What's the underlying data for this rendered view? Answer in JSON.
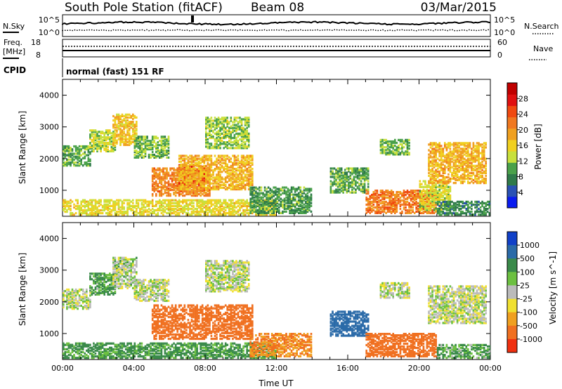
{
  "header": {
    "station": "South Pole Station (fitACF)",
    "beam": "Beam 08",
    "date": "03/Mar/2015"
  },
  "top_panels": {
    "nsky_label": "N.Sky",
    "nsearch_label": "N.Search",
    "freq_label": "Freq.",
    "freq_unit": "[MHz]",
    "nave_label": "Nave",
    "cpid_label": "CPID",
    "noise_ticks_left": [
      "10^5",
      "10^0"
    ],
    "noise_ticks_right": [
      "10^5",
      "10^0"
    ],
    "freq_ticks": [
      "18",
      "8"
    ],
    "nave_ticks": [
      "60",
      "0"
    ],
    "cpid_text": "normal (fast) 151 RF"
  },
  "chart_data": [
    {
      "type": "heatmap",
      "panel": "power",
      "ylabel": "Slant Range [km]",
      "xlabel": "",
      "xlim_hours": [
        0,
        24
      ],
      "ylim_km": [
        180,
        4500
      ],
      "yticks": [
        1000,
        2000,
        3000,
        4000
      ],
      "colorbar": {
        "label": "Power [dB]",
        "ticks": [
          "4",
          "8",
          "12",
          "16",
          "20",
          "24",
          "28"
        ],
        "range": [
          0,
          30
        ],
        "colors": [
          "#0a1cf0",
          "#2a52b4",
          "#2f7a4a",
          "#4aa14a",
          "#c8e03c",
          "#f0d020",
          "#f0a020",
          "#f07820",
          "#f04a10",
          "#e01010",
          "#c00000"
        ]
      },
      "regions": [
        {
          "t0": 0.0,
          "t1": 1.6,
          "r0": 1750,
          "r1": 2400,
          "level": 9
        },
        {
          "t0": 1.5,
          "t1": 3.0,
          "r0": 2200,
          "r1": 2900,
          "level": 12
        },
        {
          "t0": 2.8,
          "t1": 4.2,
          "r0": 2400,
          "r1": 3400,
          "level": 16
        },
        {
          "t0": 4.0,
          "t1": 6.0,
          "r0": 2000,
          "r1": 2700,
          "level": 10
        },
        {
          "t0": 5.0,
          "t1": 8.3,
          "r0": 800,
          "r1": 1700,
          "level": 20
        },
        {
          "t0": 6.5,
          "t1": 8.0,
          "r0": 1100,
          "r1": 1800,
          "level": 24
        },
        {
          "t0": 6.5,
          "t1": 10.7,
          "r0": 1000,
          "r1": 2100,
          "level": 17
        },
        {
          "t0": 8.0,
          "t1": 10.5,
          "r0": 2300,
          "r1": 3300,
          "level": 11
        },
        {
          "t0": 0.0,
          "t1": 12.0,
          "r0": 200,
          "r1": 700,
          "level": 14
        },
        {
          "t0": 10.5,
          "t1": 14.0,
          "r0": 250,
          "r1": 1100,
          "level": 8
        },
        {
          "t0": 15.0,
          "t1": 17.2,
          "r0": 900,
          "r1": 1700,
          "level": 9
        },
        {
          "t0": 17.8,
          "t1": 19.5,
          "r0": 2100,
          "r1": 2600,
          "level": 10
        },
        {
          "t0": 17.0,
          "t1": 21.0,
          "r0": 250,
          "r1": 1000,
          "level": 21
        },
        {
          "t0": 20.0,
          "t1": 21.8,
          "r0": 350,
          "r1": 1300,
          "level": 13
        },
        {
          "t0": 20.5,
          "t1": 23.8,
          "r0": 1200,
          "r1": 2500,
          "level": 17
        },
        {
          "t0": 21.0,
          "t1": 24.0,
          "r0": 200,
          "r1": 650,
          "level": 7
        }
      ]
    },
    {
      "type": "heatmap",
      "panel": "velocity",
      "ylabel": "Slant Range [km]",
      "xlabel": "Time UT",
      "xlim_hours": [
        0,
        24
      ],
      "ylim_km": [
        180,
        4500
      ],
      "yticks": [
        1000,
        2000,
        3000,
        4000
      ],
      "xticks": [
        "00:00",
        "04:00",
        "08:00",
        "12:00",
        "16:00",
        "20:00",
        "00:00"
      ],
      "colorbar": {
        "label": "Velocity [m s^-1]",
        "ticks": [
          "1000",
          "500",
          "100",
          "25",
          "-25",
          "-100",
          "-500",
          "-1000"
        ],
        "range": [
          -1000,
          1000
        ],
        "colors": [
          "#1040c8",
          "#2a6aa8",
          "#3a8a4a",
          "#6cc040",
          "#bbbbbb",
          "#f0e030",
          "#f0a020",
          "#f07020",
          "#f03010"
        ]
      },
      "regions": [
        {
          "t0": 0.0,
          "t1": 1.6,
          "r0": 1750,
          "r1": 2400,
          "vel": 0
        },
        {
          "t0": 1.5,
          "t1": 3.0,
          "r0": 2200,
          "r1": 2900,
          "vel": 80
        },
        {
          "t0": 2.8,
          "t1": 4.2,
          "r0": 2400,
          "r1": 3400,
          "vel": 10
        },
        {
          "t0": 4.0,
          "t1": 6.0,
          "r0": 2000,
          "r1": 2700,
          "vel": 0
        },
        {
          "t0": 5.0,
          "t1": 10.7,
          "r0": 800,
          "r1": 1900,
          "vel": -400
        },
        {
          "t0": 8.0,
          "t1": 10.5,
          "r0": 2300,
          "r1": 3300,
          "vel": 0
        },
        {
          "t0": 0.0,
          "t1": 12.0,
          "r0": 200,
          "r1": 700,
          "vel": 90
        },
        {
          "t0": 10.5,
          "t1": 14.0,
          "r0": 250,
          "r1": 1000,
          "vel": -300
        },
        {
          "t0": 15.0,
          "t1": 17.2,
          "r0": 900,
          "r1": 1700,
          "vel": 600
        },
        {
          "t0": 17.8,
          "t1": 19.5,
          "r0": 2100,
          "r1": 2600,
          "vel": 0
        },
        {
          "t0": 17.0,
          "t1": 21.0,
          "r0": 250,
          "r1": 1000,
          "vel": -450
        },
        {
          "t0": 20.5,
          "t1": 23.8,
          "r0": 1300,
          "r1": 2500,
          "vel": 0
        },
        {
          "t0": 21.0,
          "t1": 24.0,
          "r0": 200,
          "r1": 650,
          "vel": 60
        }
      ]
    }
  ]
}
